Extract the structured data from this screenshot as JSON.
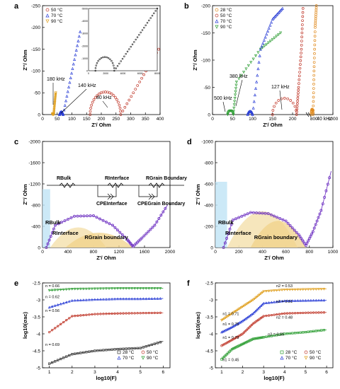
{
  "figure": {
    "panels": [
      {
        "letter": "a",
        "xlabel": "Z'/ Ohm",
        "ylabel": "Z''/ Ohm"
      },
      {
        "letter": "b",
        "xlabel": "Z'/ Ohm",
        "ylabel": "Z''/ Ohm"
      },
      {
        "letter": "c",
        "xlabel": "Z'/ Ohm",
        "ylabel": "Z''/ Ohm"
      },
      {
        "letter": "d",
        "xlabel": "Z'/ Ohm",
        "ylabel": "Z''/ Ohm"
      },
      {
        "letter": "e",
        "xlabel": "log10(F)",
        "ylabel": "log10(σac)"
      },
      {
        "letter": "f",
        "xlabel": "log10(F)",
        "ylabel": "log10(σac)"
      }
    ],
    "circuit": {
      "r_bulk": "RBulk",
      "r_interface": "RInterface",
      "r_grain_boundary": "RGrain Boundary",
      "cpe_interface": "CPEInterface",
      "cpe_grain_boundary": "CPEGrain Boundary"
    }
  },
  "chart_data": [
    {
      "panel": "a",
      "type": "scatter",
      "xlabel": "Z'/ Ohm",
      "ylabel": "Z''/ Ohm",
      "xlim": [
        0,
        400
      ],
      "ylim": [
        0,
        -250
      ],
      "xticks": [
        0,
        50,
        100,
        150,
        200,
        250,
        300,
        350,
        400
      ],
      "yticks": [
        0,
        -50,
        -100,
        -150,
        -200,
        -250
      ],
      "legend": "top-left",
      "series": [
        {
          "name": "50 °C",
          "marker": "circle",
          "color": "#c0392b",
          "semicircle": {
            "start": 162,
            "end": 266,
            "tail_to": [
              395,
              -150
            ]
          }
        },
        {
          "name": "70 °C",
          "marker": "triangle-up",
          "color": "#2b3fd6",
          "semicircle": {
            "start": 58,
            "end": 70,
            "tail_to": [
              128,
              -190
            ]
          }
        },
        {
          "name": "90 °C",
          "marker": "triangle-down",
          "color": "#e0a020",
          "semicircle": {
            "start": 34,
            "end": 38,
            "tail_to": [
              45,
              -50
            ]
          }
        }
      ],
      "annotations": [
        "180 kHz",
        "140 kHz",
        "80 kHz"
      ],
      "inset": {
        "xticks": [
          0,
          2000,
          4000,
          6000,
          8000
        ],
        "yticks": [
          0,
          -1000,
          -2000,
          -3000,
          -4000,
          -5000
        ],
        "series": {
          "name": "28 °C",
          "semicircle": {
            "start": 800,
            "end": 3000,
            "tail_to": [
              8000,
              -5000
            ]
          }
        }
      }
    },
    {
      "panel": "b",
      "type": "scatter",
      "xlabel": "Z'/ Ohm",
      "ylabel": "Z''/ Ohm",
      "xlim": [
        0,
        1000
      ],
      "ylim": [
        0,
        -200
      ],
      "xticks": [
        0,
        50,
        100,
        150,
        200,
        800,
        1000
      ],
      "xtick_labels": [
        "0",
        "50",
        "100",
        "150",
        "200",
        "800",
        "1000"
      ],
      "axis_break": [
        230,
        760
      ],
      "yticks": [
        0,
        -50,
        -100,
        -150,
        -200
      ],
      "legend": "top-left",
      "series": [
        {
          "name": "28 °C",
          "marker": "circle",
          "color": "#e08a1e"
        },
        {
          "name": "50 °C",
          "marker": "circle",
          "color": "#c0392b"
        },
        {
          "name": "70 °C",
          "marker": "triangle-up",
          "color": "#2b3fd6"
        },
        {
          "name": "90 °C",
          "marker": "triangle-down",
          "color": "#2e9e34"
        }
      ],
      "annotations": [
        "380 kHz",
        "500 kHz",
        "127 kHz",
        "40 kHz"
      ]
    },
    {
      "panel": "c",
      "type": "line",
      "xlabel": "Z'/ Ohm",
      "ylabel": "Z''/ Ohm",
      "xlim": [
        0,
        2000
      ],
      "ylim": [
        0,
        -2000
      ],
      "xticks": [
        0,
        400,
        800,
        1200,
        1600,
        2000
      ],
      "yticks": [
        0,
        -400,
        -800,
        -1200,
        -1600,
        -2000
      ],
      "series": [
        {
          "name": "",
          "marker": "circle",
          "color": "#6a2cc0",
          "points": [
            [
              60,
              0
            ],
            [
              200,
              -420
            ],
            [
              500,
              -590
            ],
            [
              800,
              -600
            ],
            [
              1100,
              -420
            ],
            [
              1330,
              -150
            ],
            [
              1420,
              -20
            ],
            [
              1560,
              -180
            ],
            [
              1760,
              -420
            ],
            [
              1960,
              -800
            ]
          ]
        }
      ],
      "regions": [
        "RBulk",
        "RInterface",
        "RGrain boundary"
      ]
    },
    {
      "panel": "d",
      "type": "line",
      "xlabel": "Z'/ Ohm",
      "ylabel": "Z''/ Ohm",
      "xlim": [
        0,
        1000
      ],
      "ylim": [
        0,
        -1000
      ],
      "xticks": [
        0,
        200,
        400,
        600,
        800,
        1000
      ],
      "yticks": [
        0,
        -200,
        -400,
        -600,
        -800,
        -1000
      ],
      "series": [
        {
          "name": "",
          "marker": "circle",
          "color": "#6a2cc0",
          "points": [
            [
              70,
              0
            ],
            [
              150,
              -260
            ],
            [
              300,
              -330
            ],
            [
              450,
              -320
            ],
            [
              600,
              -250
            ],
            [
              710,
              -120
            ],
            [
              770,
              -20
            ],
            [
              830,
              -150
            ],
            [
              900,
              -350
            ],
            [
              985,
              -720
            ]
          ]
        }
      ],
      "regions": [
        "RBulk",
        "RInterface",
        "RGrain boundary"
      ]
    },
    {
      "panel": "e",
      "type": "scatter",
      "xlabel": "log10(F)",
      "ylabel": "log10(σac)",
      "xlim": [
        0.7,
        6.3
      ],
      "ylim": [
        -5.0,
        -2.5
      ],
      "xticks": [
        1,
        2,
        3,
        4,
        5,
        6
      ],
      "yticks": [
        -2.5,
        -3.0,
        -3.5,
        -4.0,
        -4.5,
        -5.0
      ],
      "legend": "bottom-right",
      "series": [
        {
          "name": "28 °C",
          "marker": "square",
          "color": "#333333",
          "x": [
            1,
            2,
            3,
            4,
            5,
            6
          ],
          "y": [
            -4.88,
            -4.6,
            -4.5,
            -4.45,
            -4.42,
            -4.22
          ]
        },
        {
          "name": "50 °C",
          "marker": "circle",
          "color": "#c0392b",
          "x": [
            1,
            2,
            3,
            4,
            5,
            6
          ],
          "y": [
            -3.95,
            -3.48,
            -3.42,
            -3.4,
            -3.39,
            -3.38
          ]
        },
        {
          "name": "70 °C",
          "marker": "triangle-up",
          "color": "#2b3fd6",
          "x": [
            1,
            2,
            3,
            4,
            5,
            6
          ],
          "y": [
            -3.22,
            -3.02,
            -2.99,
            -2.97,
            -2.97,
            -2.96
          ]
        },
        {
          "name": "90 °C",
          "marker": "triangle-down",
          "color": "#2e9e34",
          "x": [
            1,
            2,
            3,
            4,
            5,
            6
          ],
          "y": [
            -2.72,
            -2.68,
            -2.67,
            -2.66,
            -2.66,
            -2.66
          ]
        }
      ],
      "annotations": [
        "n = 0.66",
        "n = 0.62",
        "n = 0.56",
        "n = 0.69"
      ]
    },
    {
      "panel": "f",
      "type": "scatter",
      "xlabel": "log10(F)",
      "ylabel": "log10(σac)",
      "xlim": [
        0.7,
        6.3
      ],
      "ylim": [
        -5.0,
        -2.5
      ],
      "xticks": [
        1,
        2,
        3,
        4,
        5,
        6
      ],
      "yticks": [
        -2.5,
        -3.0,
        -3.5,
        -4.0,
        -4.5,
        -5.0
      ],
      "legend": "bottom-right",
      "series": [
        {
          "name": "28 °C",
          "marker": "square",
          "color": "#2e9e34",
          "x": [
            1,
            1.5,
            2,
            2.5,
            3,
            4,
            5,
            6
          ],
          "y": [
            -4.75,
            -4.45,
            -4.3,
            -4.15,
            -4.1,
            -4.0,
            -3.95,
            -3.88
          ]
        },
        {
          "name": "50 °C",
          "marker": "circle",
          "color": "#c0392b",
          "x": [
            1,
            1.5,
            2,
            2.5,
            3,
            4,
            5,
            6
          ],
          "y": [
            -4.35,
            -4.18,
            -4.0,
            -3.7,
            -3.48,
            -3.4,
            -3.38,
            -3.37
          ]
        },
        {
          "name": "70 °C",
          "marker": "triangle-up",
          "color": "#2b3fd6",
          "x": [
            1,
            1.5,
            2,
            2.5,
            3,
            4,
            5,
            6
          ],
          "y": [
            -3.95,
            -3.8,
            -3.62,
            -3.4,
            -3.1,
            -3.03,
            -3.02,
            -3.01
          ]
        },
        {
          "name": "90 °C",
          "marker": "triangle-down",
          "color": "#e0a020",
          "x": [
            1,
            1.5,
            2,
            2.5,
            3,
            4,
            5,
            6
          ],
          "y": [
            -3.6,
            -3.4,
            -3.2,
            -3.0,
            -2.75,
            -2.7,
            -2.69,
            -2.68
          ]
        }
      ],
      "annotations": [
        "n2 = 0.53",
        "n2 = 0.51",
        "n2 = 0.48",
        "n2 = 0.55",
        "n1 = 0.71",
        "n1 = 0.75",
        "n1 = 0.73",
        "n1 = 0.45"
      ]
    }
  ]
}
